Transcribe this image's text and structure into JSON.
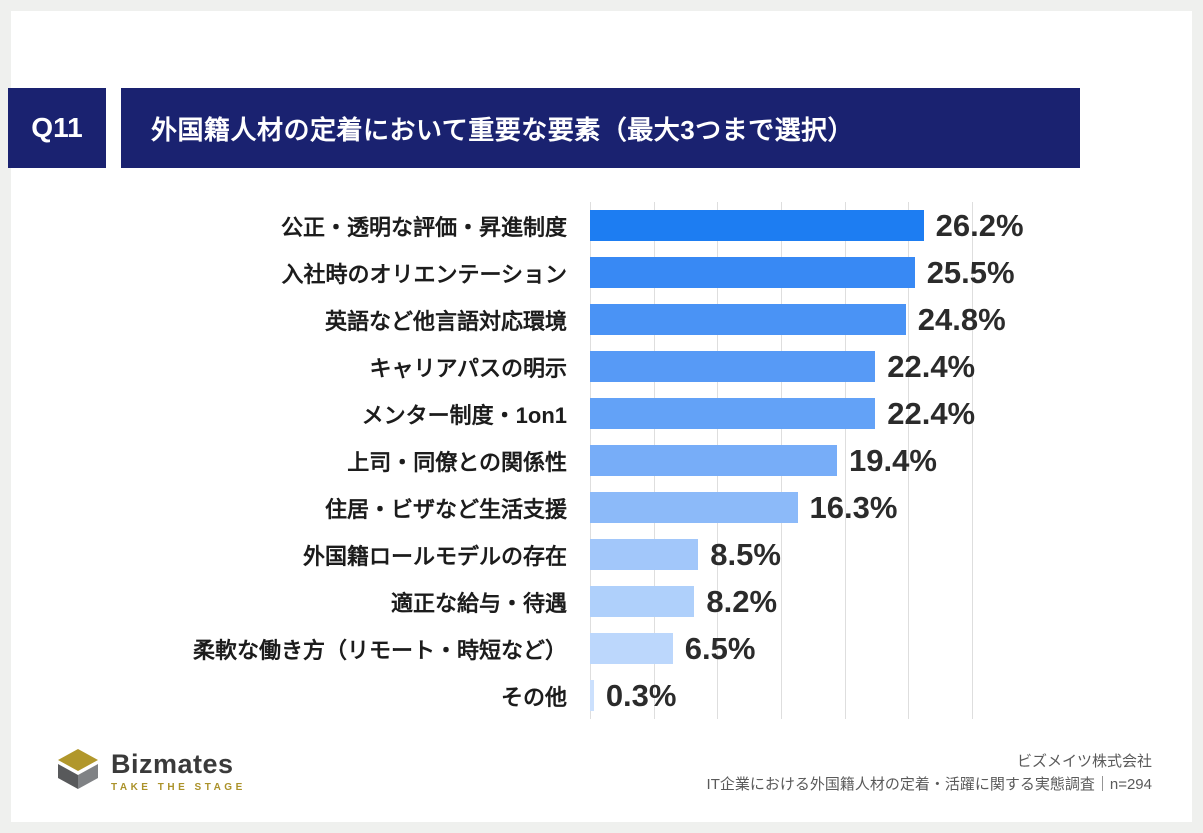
{
  "theme": {
    "navy": "#1a2270",
    "gold": "#b1972b",
    "gridline": "#dedede",
    "page_background": "#eff0ee",
    "card_background": "#ffffff"
  },
  "header": {
    "badge": "Q11",
    "title": "外国籍人材の定着において重要な要素（最大3つまで選択）"
  },
  "chart_data": {
    "type": "bar",
    "orientation": "horizontal",
    "title": "外国籍人材の定着において重要な要素（最大3つまで選択）",
    "categories": [
      "公正・透明な評価・昇進制度",
      "入社時のオリエンテーション",
      "英語など他言語対応環境",
      "キャリアパスの明示",
      "メンター制度・1on1",
      "上司・同僚との関係性",
      "住居・ビザなど生活支援",
      "外国籍ロールモデルの存在",
      "適正な給与・待遇",
      "柔軟な働き方（リモート・時短など）",
      "その他"
    ],
    "values": [
      26.2,
      25.5,
      24.8,
      22.4,
      22.4,
      19.4,
      16.3,
      8.5,
      8.2,
      6.5,
      0.3
    ],
    "value_labels": [
      "26.2%",
      "25.5%",
      "24.8%",
      "22.4%",
      "22.4%",
      "19.4%",
      "16.3%",
      "8.5%",
      "8.2%",
      "6.5%",
      "0.3%"
    ],
    "xlim": [
      0,
      30
    ],
    "gridline_step": 5,
    "grid": true,
    "legend": false,
    "bar_colors": [
      "#1d7df2",
      "#3889f4",
      "#4a93f5",
      "#579af6",
      "#63a2f7",
      "#77adf8",
      "#8cbaf9",
      "#a2c7fa",
      "#afd0fb",
      "#bcd7fc",
      "#cbe0fd"
    ]
  },
  "footer": {
    "logo_text": "Bizmates",
    "logo_tagline": "TAKE THE STAGE",
    "credit_line1": "ビズメイツ株式会社",
    "credit_line2": "IT企業における外国籍人材の定着・活躍に関する実態調査｜n=294"
  }
}
